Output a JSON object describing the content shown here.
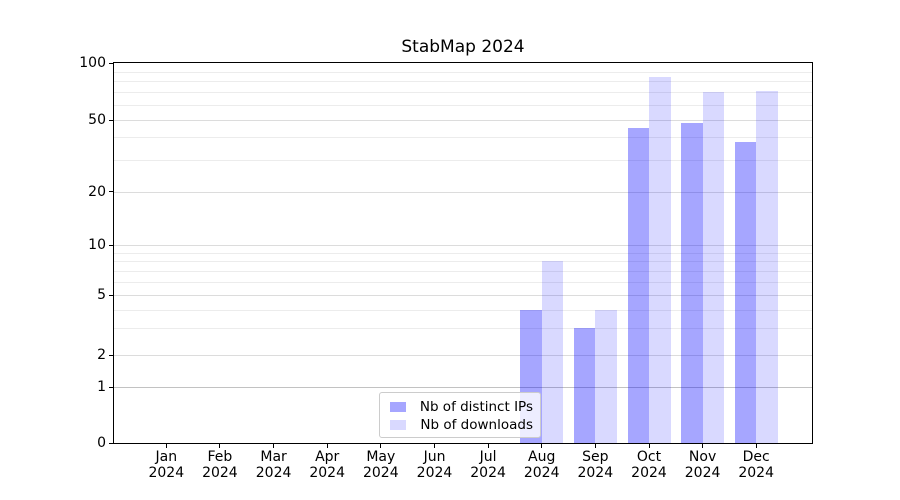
{
  "title": "StabMap 2024",
  "chart_data": {
    "type": "bar",
    "title": "StabMap 2024",
    "categories": [
      "Jan 2024",
      "Feb 2024",
      "Mar 2024",
      "Apr 2024",
      "May 2024",
      "Jun 2024",
      "Jul 2024",
      "Aug 2024",
      "Sep 2024",
      "Oct 2024",
      "Nov 2024",
      "Dec 2024"
    ],
    "series": [
      {
        "name": "Nb of distinct IPs",
        "color": "rgba(0,0,255,0.35)",
        "solid_color": "#a6a6ff",
        "values": [
          0,
          0,
          0,
          0,
          0,
          0,
          0,
          4,
          3,
          45,
          48,
          38
        ]
      },
      {
        "name": "Nb of downloads",
        "color": "rgba(0,0,255,0.15)",
        "solid_color": "#d9d9ff",
        "values": [
          0,
          0,
          0,
          0,
          0,
          0,
          0,
          8,
          4,
          84,
          70,
          71
        ]
      }
    ],
    "xlabel": "",
    "ylabel": "",
    "yscale": "symlog",
    "ylim": [
      0,
      100
    ],
    "y_ticks_major": [
      0,
      1,
      2,
      5,
      10,
      20,
      50,
      100
    ],
    "y_ticks_minor": [
      3,
      4,
      6,
      7,
      8,
      9,
      30,
      40,
      60,
      70,
      80,
      90
    ],
    "grid": true,
    "legend_location": "lower center"
  },
  "colors": {
    "grid_major": "#dcdcdc",
    "grid_minor": "#ececec",
    "grid_unit_line": "#c2c2c2",
    "spine": "#000000",
    "text": "#000000",
    "legend_border": "#cccccc"
  }
}
